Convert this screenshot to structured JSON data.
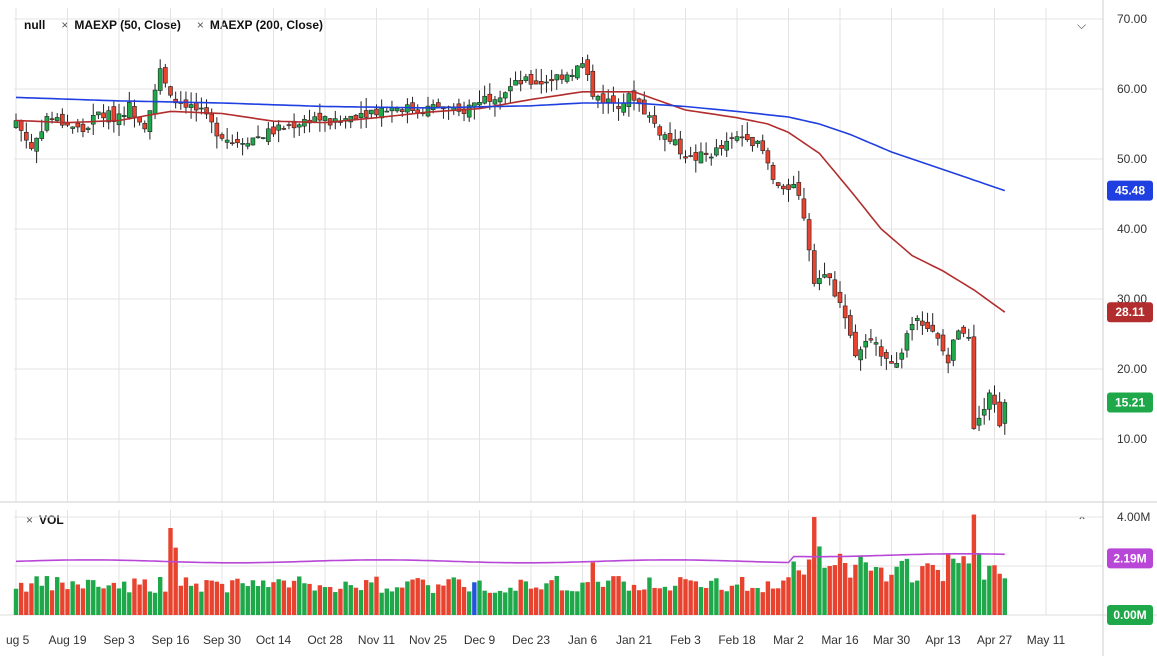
{
  "legend": {
    "symbol": "null",
    "ma50": "MAEXP (50, Close)",
    "ma200": "MAEXP (200, Close)",
    "vol": "VOL",
    "close_symbol": "×"
  },
  "colors": {
    "up": "#1fa84a",
    "down": "#e8432f",
    "ma50": "#b22d2d",
    "ma200": "#1f3fe0",
    "volma": "#b847d8",
    "grid": "#e3e3e3",
    "lastprice": "#1fa84a"
  },
  "badges": {
    "ma200_value": "45.48",
    "ma50_value": "28.11",
    "last_price": "15.21",
    "vol_ma": "2.19M",
    "vol_zero": "0.00M"
  },
  "chart_data": {
    "type": "candlestick",
    "price_axis": {
      "min": 0,
      "max": 70,
      "ticks": [
        "10.00",
        "20.00",
        "30.00",
        "40.00",
        "50.00",
        "60.00",
        "70.00"
      ]
    },
    "volume_axis": {
      "ticks": [
        "4.00M"
      ]
    },
    "x_ticks": [
      "ug 5",
      "Aug 19",
      "Sep 3",
      "Sep 16",
      "Sep 30",
      "Oct 14",
      "Oct 28",
      "Nov 11",
      "Nov 25",
      "Dec 9",
      "Dec 23",
      "Jan 6",
      "Jan 21",
      "Feb 3",
      "Feb 18",
      "Mar 2",
      "Mar 16",
      "Mar 30",
      "Apr 13",
      "Apr 27",
      "May 11"
    ],
    "x_tick_bar_index": [
      0,
      10,
      20,
      30,
      40,
      50,
      60,
      70,
      80,
      90,
      100,
      110,
      120,
      130,
      140,
      150,
      160,
      170,
      180,
      190,
      200
    ],
    "anchors": [
      [
        0,
        55.5
      ],
      [
        3,
        51.5
      ],
      [
        6,
        56
      ],
      [
        10,
        55
      ],
      [
        13,
        54
      ],
      [
        16,
        56.5
      ],
      [
        19,
        56
      ],
      [
        22,
        57.5
      ],
      [
        25,
        55
      ],
      [
        28,
        62.5
      ],
      [
        30,
        58.5
      ],
      [
        33,
        58
      ],
      [
        36,
        56.5
      ],
      [
        39,
        54
      ],
      [
        42,
        52.5
      ],
      [
        46,
        53
      ],
      [
        50,
        54
      ],
      [
        54,
        55
      ],
      [
        58,
        56
      ],
      [
        62,
        55
      ],
      [
        66,
        56.5
      ],
      [
        70,
        57
      ],
      [
        74,
        57.5
      ],
      [
        78,
        57
      ],
      [
        82,
        57.5
      ],
      [
        86,
        56.5
      ],
      [
        90,
        58.5
      ],
      [
        94,
        59.5
      ],
      [
        98,
        61
      ],
      [
        102,
        61
      ],
      [
        106,
        62
      ],
      [
        108,
        62.5
      ],
      [
        110,
        63.5
      ],
      [
        112,
        59.5
      ],
      [
        114,
        58.5
      ],
      [
        117,
        58
      ],
      [
        120,
        59
      ],
      [
        122,
        57
      ],
      [
        125,
        54
      ],
      [
        128,
        52
      ],
      [
        131,
        50
      ],
      [
        134,
        50.5
      ],
      [
        137,
        51.5
      ],
      [
        140,
        53
      ],
      [
        142,
        53.5
      ],
      [
        145,
        51
      ],
      [
        147,
        47
      ],
      [
        149,
        45
      ],
      [
        151,
        47
      ],
      [
        153,
        42
      ],
      [
        155,
        33
      ],
      [
        157,
        34
      ],
      [
        159,
        31
      ],
      [
        161,
        28
      ],
      [
        163,
        22
      ],
      [
        165,
        24
      ],
      [
        167,
        23
      ],
      [
        169,
        22
      ],
      [
        171,
        20.5
      ],
      [
        173,
        25
      ],
      [
        175,
        28
      ],
      [
        177,
        26
      ],
      [
        179,
        24
      ],
      [
        181,
        21
      ],
      [
        183,
        26
      ],
      [
        185,
        25
      ],
      [
        186,
        11
      ],
      [
        187,
        13
      ],
      [
        189,
        17
      ],
      [
        191,
        12.5
      ],
      [
        192,
        15.21
      ]
    ],
    "ma50_anchors": [
      [
        0,
        55.5
      ],
      [
        10,
        55.2
      ],
      [
        20,
        55.5
      ],
      [
        30,
        56.8
      ],
      [
        40,
        56.5
      ],
      [
        50,
        55.4
      ],
      [
        60,
        55.2
      ],
      [
        70,
        55.9
      ],
      [
        80,
        56.7
      ],
      [
        90,
        57.2
      ],
      [
        100,
        58.5
      ],
      [
        110,
        59.6
      ],
      [
        120,
        59.6
      ],
      [
        125,
        58.3
      ],
      [
        130,
        57
      ],
      [
        140,
        55.9
      ],
      [
        146,
        55
      ],
      [
        150,
        53.8
      ],
      [
        156,
        50.8
      ],
      [
        162,
        45.5
      ],
      [
        168,
        40
      ],
      [
        174,
        36.2
      ],
      [
        180,
        34
      ],
      [
        186,
        31.3
      ],
      [
        192,
        28.11
      ]
    ],
    "ma200_anchors": [
      [
        0,
        58.8
      ],
      [
        20,
        58.3
      ],
      [
        40,
        58
      ],
      [
        60,
        57.5
      ],
      [
        80,
        57.3
      ],
      [
        100,
        57.6
      ],
      [
        110,
        58
      ],
      [
        120,
        58
      ],
      [
        130,
        57.5
      ],
      [
        140,
        56.8
      ],
      [
        150,
        56
      ],
      [
        156,
        55
      ],
      [
        162,
        53.5
      ],
      [
        170,
        51
      ],
      [
        180,
        48.5
      ],
      [
        192,
        45.48
      ]
    ],
    "vol_max": 4.0,
    "vol_ma": 2.19,
    "special_volumes": {
      "30": 3.55,
      "31": 2.75,
      "112": 2.15,
      "155": 4.0,
      "156": 2.8,
      "158": 2.0,
      "160": 2.5,
      "164": 2.4,
      "181": 2.5,
      "182": 2.3,
      "184": 2.4,
      "186": 4.1,
      "187": 2.5
    }
  }
}
